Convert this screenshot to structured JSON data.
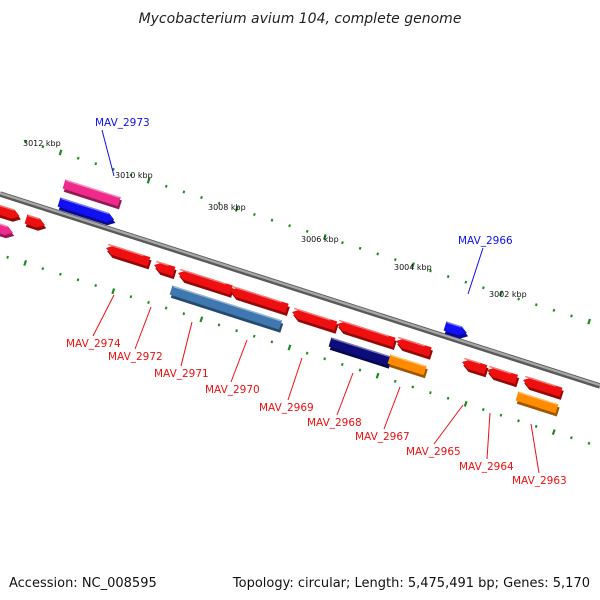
{
  "figure": {
    "title": "Mycobacterium avium 104, complete genome",
    "accession_text": "Accession: NC_008595",
    "summary_text": "Topology: circular; Length: 5,475,491 bp; Genes: 5,170"
  },
  "colors": {
    "backbone": "#888888",
    "tick_minor": "#1f8a1f",
    "tick_major": "#1f8a1f",
    "label_forward": "#1010ee",
    "label_reverse": "#ee1010",
    "gene_red": "#ee1010",
    "gene_blue": "#1010f0",
    "gene_pink": "#ee2a8a",
    "gene_steel": "#3f77b0",
    "gene_navy": "#0c0c7a",
    "gene_orange": "#ff8c00"
  },
  "scale_labels": [
    "3012 kbp",
    "3010 kbp",
    "3008 kbp",
    "3006 kbp",
    "3004 kbp",
    "3002 kbp"
  ],
  "labeled_genes": [
    {
      "name": "MAV_2973",
      "strand": "forward"
    },
    {
      "name": "MAV_2966",
      "strand": "forward"
    },
    {
      "name": "MAV_2974",
      "strand": "reverse"
    },
    {
      "name": "MAV_2972",
      "strand": "reverse"
    },
    {
      "name": "MAV_2971",
      "strand": "reverse"
    },
    {
      "name": "MAV_2970",
      "strand": "reverse"
    },
    {
      "name": "MAV_2969",
      "strand": "reverse"
    },
    {
      "name": "MAV_2968",
      "strand": "reverse"
    },
    {
      "name": "MAV_2967",
      "strand": "reverse"
    },
    {
      "name": "MAV_2965",
      "strand": "reverse"
    },
    {
      "name": "MAV_2964",
      "strand": "reverse"
    },
    {
      "name": "MAV_2963",
      "strand": "reverse"
    }
  ]
}
